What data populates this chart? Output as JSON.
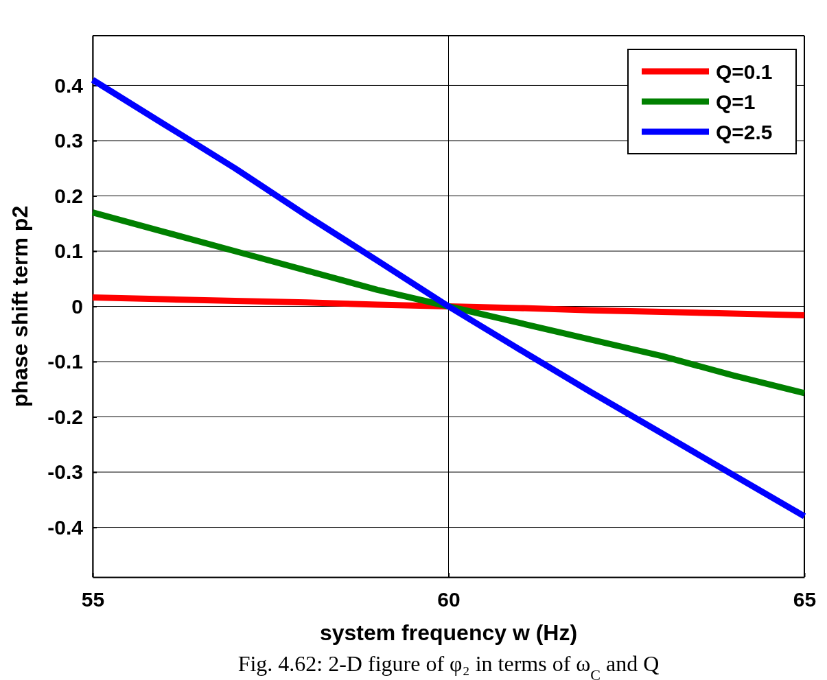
{
  "chart_data": {
    "type": "line",
    "xlabel": "system frequency w (Hz)",
    "ylabel": "phase shift term p2",
    "x": [
      55,
      56,
      57,
      58,
      59,
      60,
      61,
      62,
      63,
      64,
      65
    ],
    "series": [
      {
        "name": "Q=0.1",
        "color": "#ff0000",
        "values": [
          0.016,
          0.013,
          0.01,
          0.007,
          0.003,
          0,
          -0.003,
          -0.007,
          -0.01,
          -0.013,
          -0.016
        ]
      },
      {
        "name": "Q=1",
        "color": "#008000",
        "values": [
          0.17,
          0.135,
          0.1,
          0.065,
          0.03,
          0,
          -0.03,
          -0.06,
          -0.09,
          -0.125,
          -0.157
        ]
      },
      {
        "name": "Q=2.5",
        "color": "#0000ff",
        "values": [
          0.41,
          0.33,
          0.25,
          0.165,
          0.083,
          0,
          -0.078,
          -0.155,
          -0.23,
          -0.305,
          -0.38
        ]
      }
    ],
    "xlim": [
      55,
      65
    ],
    "xticks": [
      55,
      60,
      65
    ],
    "ylim": [
      -0.49,
      0.49
    ],
    "yticks": [
      {
        "value": -0.4,
        "label": "-0.4"
      },
      {
        "value": -0.3,
        "label": "-0.3"
      },
      {
        "value": -0.2,
        "label": "-0.2"
      },
      {
        "value": -0.1,
        "label": "-0.1"
      },
      0,
      0.1,
      0.2,
      0.3,
      0.4
    ],
    "grid": true,
    "legend": "top right",
    "line_style": "solid",
    "annotations": [
      "Fig. 4.62: 2-D figure of φ₂ in terms of ω$_{C}$ and Q"
    ]
  }
}
